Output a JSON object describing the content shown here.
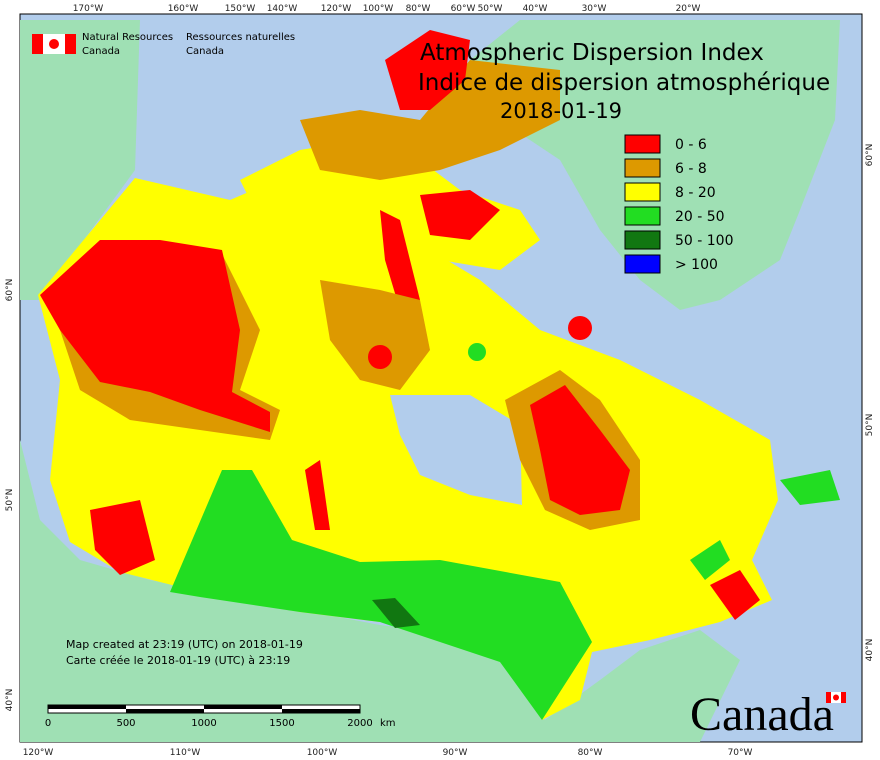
{
  "agency": {
    "en_1": "Natural Resources",
    "en_2": "Canada",
    "fr_1": "Ressources naturelles",
    "fr_2": "Canada"
  },
  "title": {
    "en": "Atmospheric Dispersion Index",
    "fr": "Indice de dispersion atmosphérique",
    "date": "2018-01-19"
  },
  "legend": [
    {
      "label": "0 - 6",
      "color": "#ff0000"
    },
    {
      "label": "6 - 8",
      "color": "#dd9900"
    },
    {
      "label": "8 - 20",
      "color": "#ffff00"
    },
    {
      "label": "20 - 50",
      "color": "#22dd22"
    },
    {
      "label": "50 - 100",
      "color": "#117711"
    },
    {
      "label": "> 100",
      "color": "#0000ff"
    }
  ],
  "graticule": {
    "top": [
      "170°W",
      "160°W",
      "150°W",
      "140°W",
      "120°W",
      "100°W",
      "80°W",
      "60°W",
      "50°W",
      "40°W",
      "30°W",
      "20°W"
    ],
    "bottom": [
      "120°W",
      "110°W",
      "100°W",
      "90°W",
      "80°W",
      "70°W"
    ],
    "left": [
      "60°N",
      "50°N",
      "40°N"
    ],
    "right": [
      "60°N",
      "50°N",
      "40°N"
    ]
  },
  "credit": {
    "en": "Map created at 23:19 (UTC) on 2018-01-19",
    "fr": "Carte créée le 2018-01-19 (UTC) à 23:19"
  },
  "scale": {
    "ticks": [
      "0",
      "500",
      "1000",
      "1500",
      "2000"
    ],
    "unit": "km"
  },
  "wordmark": "Canada"
}
